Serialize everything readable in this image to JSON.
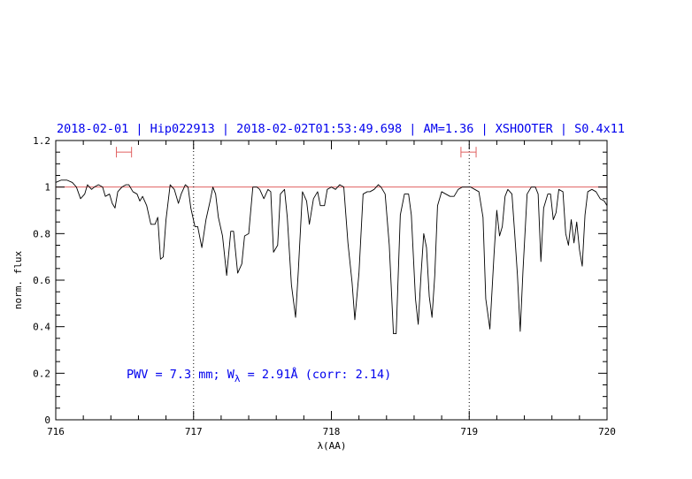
{
  "chart_data": {
    "type": "line",
    "title": "2018-02-01 | Hip022913 | 2018-02-02T01:53:49.698 | AM=1.36 | XSHOOTER | S0.4x11",
    "xlabel": "λ(AA)",
    "ylabel": "norm. flux",
    "xlim": [
      716,
      720
    ],
    "ylim": [
      0,
      1.2
    ],
    "x_ticks": [
      716,
      717,
      718,
      719,
      720
    ],
    "x_tick_labels": [
      "716",
      "717",
      "718",
      "719",
      "720"
    ],
    "y_ticks": [
      0,
      0.2,
      0.4,
      0.6,
      0.8,
      1,
      1.2
    ],
    "y_tick_labels": [
      "0",
      "0.2",
      "0.4",
      "0.6",
      "0.8",
      "1",
      "1.2"
    ],
    "reference_line": {
      "y": 1.0,
      "color": "#e06060"
    },
    "vertical_lines": [
      717,
      719
    ],
    "windows": [
      {
        "x1": 716.44,
        "x2": 716.55,
        "y": 1.15
      },
      {
        "x1": 718.94,
        "x2": 719.05,
        "y": 1.15
      }
    ],
    "annotation": {
      "prefix": "PWV = 7.3 mm; W",
      "subscript": "λ",
      "suffix": " = 2.91Å (corr: 2.14)"
    },
    "series": [
      {
        "color": "#000000",
        "points": [
          [
            716.0,
            1.02
          ],
          [
            716.04,
            1.03
          ],
          [
            716.08,
            1.03
          ],
          [
            716.12,
            1.02
          ],
          [
            716.15,
            1.0
          ],
          [
            716.18,
            0.95
          ],
          [
            716.21,
            0.97
          ],
          [
            716.23,
            1.01
          ],
          [
            716.26,
            0.99
          ],
          [
            716.28,
            1.0
          ],
          [
            716.31,
            1.01
          ],
          [
            716.34,
            1.0
          ],
          [
            716.36,
            0.96
          ],
          [
            716.39,
            0.97
          ],
          [
            716.41,
            0.93
          ],
          [
            716.43,
            0.91
          ],
          [
            716.45,
            0.98
          ],
          [
            716.48,
            1.0
          ],
          [
            716.51,
            1.01
          ],
          [
            716.53,
            1.01
          ],
          [
            716.56,
            0.98
          ],
          [
            716.59,
            0.97
          ],
          [
            716.61,
            0.94
          ],
          [
            716.63,
            0.96
          ],
          [
            716.66,
            0.92
          ],
          [
            716.69,
            0.84
          ],
          [
            716.72,
            0.84
          ],
          [
            716.74,
            0.87
          ],
          [
            716.76,
            0.69
          ],
          [
            716.78,
            0.7
          ],
          [
            716.8,
            0.86
          ],
          [
            716.83,
            1.01
          ],
          [
            716.86,
            0.99
          ],
          [
            716.89,
            0.93
          ],
          [
            716.91,
            0.97
          ],
          [
            716.94,
            1.01
          ],
          [
            716.96,
            1.0
          ],
          [
            716.98,
            0.91
          ],
          [
            717.01,
            0.83
          ],
          [
            717.03,
            0.83
          ],
          [
            717.06,
            0.74
          ],
          [
            717.09,
            0.86
          ],
          [
            717.12,
            0.94
          ],
          [
            717.14,
            1.0
          ],
          [
            717.16,
            0.97
          ],
          [
            717.18,
            0.87
          ],
          [
            717.21,
            0.79
          ],
          [
            717.24,
            0.62
          ],
          [
            717.27,
            0.81
          ],
          [
            717.29,
            0.81
          ],
          [
            717.32,
            0.63
          ],
          [
            717.35,
            0.67
          ],
          [
            717.37,
            0.79
          ],
          [
            717.4,
            0.8
          ],
          [
            717.43,
            1.0
          ],
          [
            717.46,
            1.0
          ],
          [
            717.48,
            0.99
          ],
          [
            717.51,
            0.95
          ],
          [
            717.54,
            0.99
          ],
          [
            717.56,
            0.98
          ],
          [
            717.58,
            0.72
          ],
          [
            717.61,
            0.75
          ],
          [
            717.63,
            0.97
          ],
          [
            717.66,
            0.99
          ],
          [
            717.68,
            0.87
          ],
          [
            717.71,
            0.58
          ],
          [
            717.74,
            0.44
          ],
          [
            717.76,
            0.64
          ],
          [
            717.79,
            0.98
          ],
          [
            717.82,
            0.94
          ],
          [
            717.84,
            0.84
          ],
          [
            717.87,
            0.95
          ],
          [
            717.9,
            0.98
          ],
          [
            717.92,
            0.92
          ],
          [
            717.95,
            0.92
          ],
          [
            717.97,
            0.99
          ],
          [
            718.0,
            1.0
          ],
          [
            718.03,
            0.99
          ],
          [
            718.06,
            1.01
          ],
          [
            718.09,
            1.0
          ],
          [
            718.12,
            0.76
          ],
          [
            718.15,
            0.59
          ],
          [
            718.17,
            0.43
          ],
          [
            718.2,
            0.63
          ],
          [
            718.23,
            0.97
          ],
          [
            718.26,
            0.98
          ],
          [
            718.28,
            0.98
          ],
          [
            718.31,
            0.99
          ],
          [
            718.34,
            1.01
          ],
          [
            718.36,
            1.0
          ],
          [
            718.39,
            0.97
          ],
          [
            718.42,
            0.75
          ],
          [
            718.45,
            0.37
          ],
          [
            718.47,
            0.37
          ],
          [
            718.5,
            0.88
          ],
          [
            718.53,
            0.97
          ],
          [
            718.56,
            0.97
          ],
          [
            718.58,
            0.88
          ],
          [
            718.61,
            0.52
          ],
          [
            718.63,
            0.41
          ],
          [
            718.65,
            0.62
          ],
          [
            718.67,
            0.8
          ],
          [
            718.69,
            0.74
          ],
          [
            718.71,
            0.53
          ],
          [
            718.73,
            0.44
          ],
          [
            718.75,
            0.62
          ],
          [
            718.77,
            0.92
          ],
          [
            718.8,
            0.98
          ],
          [
            718.83,
            0.97
          ],
          [
            718.86,
            0.96
          ],
          [
            718.89,
            0.96
          ],
          [
            718.92,
            0.99
          ],
          [
            718.95,
            1.0
          ],
          [
            718.98,
            1.0
          ],
          [
            719.01,
            1.0
          ],
          [
            719.04,
            0.99
          ],
          [
            719.07,
            0.98
          ],
          [
            719.1,
            0.87
          ],
          [
            719.12,
            0.52
          ],
          [
            719.15,
            0.39
          ],
          [
            719.18,
            0.71
          ],
          [
            719.2,
            0.9
          ],
          [
            719.22,
            0.79
          ],
          [
            719.24,
            0.83
          ],
          [
            719.26,
            0.96
          ],
          [
            719.28,
            0.99
          ],
          [
            719.31,
            0.97
          ],
          [
            719.33,
            0.8
          ],
          [
            719.35,
            0.62
          ],
          [
            719.37,
            0.38
          ],
          [
            719.39,
            0.64
          ],
          [
            719.42,
            0.97
          ],
          [
            719.45,
            1.0
          ],
          [
            719.48,
            1.0
          ],
          [
            719.5,
            0.97
          ],
          [
            719.52,
            0.68
          ],
          [
            719.54,
            0.91
          ],
          [
            719.57,
            0.97
          ],
          [
            719.59,
            0.97
          ],
          [
            719.61,
            0.86
          ],
          [
            719.63,
            0.89
          ],
          [
            719.65,
            0.99
          ],
          [
            719.68,
            0.98
          ],
          [
            719.7,
            0.8
          ],
          [
            719.72,
            0.75
          ],
          [
            719.74,
            0.86
          ],
          [
            719.76,
            0.76
          ],
          [
            719.78,
            0.85
          ],
          [
            719.8,
            0.73
          ],
          [
            719.82,
            0.66
          ],
          [
            719.84,
            0.88
          ],
          [
            719.86,
            0.98
          ],
          [
            719.89,
            0.99
          ],
          [
            719.92,
            0.98
          ],
          [
            719.95,
            0.95
          ],
          [
            719.98,
            0.94
          ],
          [
            720.0,
            0.92
          ]
        ]
      }
    ]
  }
}
